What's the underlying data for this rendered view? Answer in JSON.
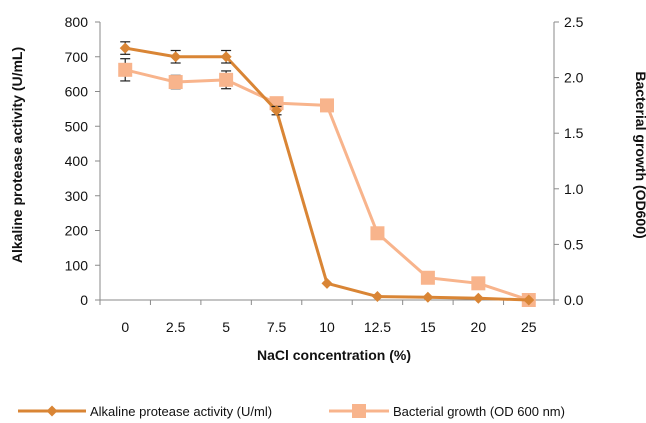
{
  "chart_data": {
    "type": "line",
    "title": "",
    "xlabel": "NaCl concentration (%)",
    "ylabel_left": "Alkaline protease activity (U/mL)",
    "ylabel_right": "Bacterial growth (OD600)",
    "categories": [
      "0",
      "2.5",
      "5",
      "7.5",
      "10",
      "12.5",
      "15",
      "20",
      "25"
    ],
    "y_left": {
      "lim": [
        0,
        800
      ],
      "ticks": [
        "0",
        "100",
        "200",
        "300",
        "400",
        "500",
        "600",
        "700",
        "800"
      ]
    },
    "y_right": {
      "lim": [
        0,
        2.5
      ],
      "ticks": [
        "0.0",
        "0.5",
        "1.0",
        "1.5",
        "2.0",
        "2.5"
      ]
    },
    "grid": false,
    "legend_position": "bottom",
    "series": [
      {
        "name": "Alkaline protease activity  (U/ml)",
        "axis": "left",
        "marker": "diamond",
        "color": "#d98535",
        "values": [
          725,
          700,
          700,
          545,
          48,
          10,
          8,
          5,
          0
        ],
        "errors": [
          18,
          18,
          18,
          12,
          0,
          0,
          0,
          0,
          0
        ]
      },
      {
        "name": "Bacterial growth (OD 600 nm)",
        "axis": "right",
        "marker": "square",
        "color": "#f8b48c",
        "values": [
          2.07,
          1.96,
          1.98,
          1.77,
          1.75,
          0.6,
          0.2,
          0.15,
          0.0
        ],
        "errors": [
          0.1,
          0.06,
          0.08,
          0.03,
          0,
          0,
          0,
          0,
          0
        ]
      }
    ]
  }
}
